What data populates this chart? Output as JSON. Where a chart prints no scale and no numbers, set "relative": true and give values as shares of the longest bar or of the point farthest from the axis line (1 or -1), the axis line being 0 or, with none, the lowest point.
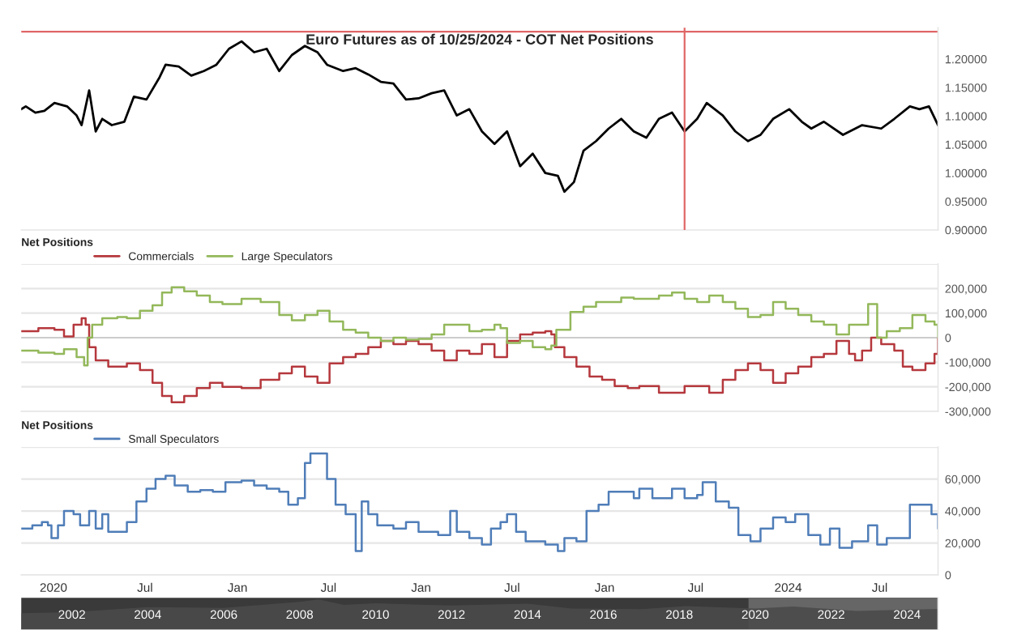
{
  "chart_data": [
    {
      "type": "line",
      "title": "Euro Futures as of 10/25/2024 - COT Net Positions",
      "tick_labels": "y",
      "grid": false,
      "xlim": [
        "2019-10-29",
        "2024-10-25"
      ],
      "ylim": [
        0.9,
        1.255
      ],
      "yticks": [
        {
          "value": 0.9,
          "label": "0.90000"
        },
        {
          "value": 0.95,
          "label": "0.95000"
        },
        {
          "value": 1.0,
          "label": "1.00000"
        },
        {
          "value": 1.05,
          "label": "1.05000"
        },
        {
          "value": 1.1,
          "label": "1.10000"
        },
        {
          "value": 1.15,
          "label": "1.15000"
        },
        {
          "value": 1.2,
          "label": "1.20000"
        }
      ],
      "ref_lines": [
        {
          "axis": "x",
          "value": "2023-06-09",
          "color": "#e06666"
        },
        {
          "axis": "y",
          "value": 1.248,
          "color": "#e06666"
        }
      ],
      "series": [
        {
          "color": "#000000",
          "x": [
            "2019-10-29",
            "2019-11-07",
            "2019-11-26",
            "2019-12-14",
            "2020-01-03",
            "2020-01-28",
            "2020-02-16",
            "2020-02-26",
            "2020-03-12",
            "2020-03-25",
            "2020-04-07",
            "2020-04-26",
            "2020-05-21",
            "2020-06-09",
            "2020-07-04",
            "2020-07-30",
            "2020-08-11",
            "2020-09-06",
            "2020-10-01",
            "2020-10-26",
            "2020-11-20",
            "2020-12-15",
            "2021-01-09",
            "2021-02-03",
            "2021-02-28",
            "2021-03-25",
            "2021-04-19",
            "2021-05-15",
            "2021-06-09",
            "2021-06-28",
            "2021-07-30",
            "2021-08-24",
            "2021-09-18",
            "2021-10-13",
            "2021-11-07",
            "2021-12-02",
            "2021-12-27",
            "2022-01-22",
            "2022-02-16",
            "2022-03-13",
            "2022-04-07",
            "2022-05-02",
            "2022-05-27",
            "2022-06-21",
            "2022-07-17",
            "2022-08-11",
            "2022-09-05",
            "2022-09-30",
            "2022-10-13",
            "2022-11-01",
            "2022-11-20",
            "2022-12-15",
            "2023-01-09",
            "2023-02-03",
            "2023-02-28",
            "2023-03-25",
            "2023-04-19",
            "2023-05-15",
            "2023-06-09",
            "2023-07-04",
            "2023-07-23",
            "2023-08-24",
            "2023-09-18",
            "2023-10-13",
            "2023-11-07",
            "2023-12-02",
            "2024-01-03",
            "2024-01-28",
            "2024-02-16",
            "2024-03-12",
            "2024-04-19",
            "2024-05-27",
            "2024-07-04",
            "2024-07-30",
            "2024-08-30",
            "2024-09-18",
            "2024-10-07",
            "2024-10-25"
          ],
          "values": [
            1.112,
            1.117,
            1.106,
            1.109,
            1.123,
            1.117,
            1.101,
            1.084,
            1.145,
            1.073,
            1.095,
            1.084,
            1.09,
            1.134,
            1.129,
            1.168,
            1.19,
            1.187,
            1.171,
            1.179,
            1.19,
            1.218,
            1.231,
            1.212,
            1.218,
            1.179,
            1.207,
            1.223,
            1.212,
            1.19,
            1.179,
            1.184,
            1.173,
            1.16,
            1.157,
            1.129,
            1.131,
            1.14,
            1.145,
            1.101,
            1.112,
            1.073,
            1.051,
            1.073,
            1.012,
            1.034,
            1.0,
            0.995,
            0.967,
            0.984,
            1.039,
            1.056,
            1.078,
            1.095,
            1.073,
            1.062,
            1.095,
            1.106,
            1.073,
            1.095,
            1.123,
            1.101,
            1.073,
            1.056,
            1.067,
            1.095,
            1.112,
            1.09,
            1.078,
            1.09,
            1.067,
            1.084,
            1.078,
            1.095,
            1.117,
            1.112,
            1.117,
            1.084
          ]
        }
      ]
    },
    {
      "type": "step",
      "title": "Net Positions",
      "tick_labels": "y",
      "grid": "y",
      "legend": "top left",
      "xlim": [
        "2019-10-29",
        "2024-10-25"
      ],
      "ylim": [
        -300000,
        300000
      ],
      "yticks": [
        {
          "value": -300000,
          "label": "-300,000"
        },
        {
          "value": -200000,
          "label": "-200,000"
        },
        {
          "value": -100000,
          "label": "-100,000"
        },
        {
          "value": 0,
          "label": "0"
        },
        {
          "value": 100000,
          "label": "100,000"
        },
        {
          "value": 200000,
          "label": "200,000"
        },
        {
          "value": 300000,
          "label": null
        }
      ],
      "ref_lines": [
        {
          "axis": "y",
          "value": 0,
          "color": "#cccccc"
        }
      ],
      "series": [
        {
          "name": "Commercials",
          "color": "#b5383d",
          "x": [
            "2019-10-29",
            "2019-12-02",
            "2020-01-03",
            "2020-01-22",
            "2020-02-10",
            "2020-02-26",
            "2020-03-05",
            "2020-03-12",
            "2020-03-25",
            "2020-04-19",
            "2020-05-26",
            "2020-06-21",
            "2020-07-16",
            "2020-08-04",
            "2020-08-23",
            "2020-09-17",
            "2020-10-12",
            "2020-11-07",
            "2020-12-02",
            "2021-01-09",
            "2021-02-16",
            "2021-03-25",
            "2021-04-19",
            "2021-05-15",
            "2021-06-09",
            "2021-07-03",
            "2021-07-30",
            "2021-08-24",
            "2021-09-18",
            "2021-10-13",
            "2021-11-07",
            "2021-12-02",
            "2021-12-27",
            "2022-01-22",
            "2022-02-16",
            "2022-03-13",
            "2022-04-07",
            "2022-05-02",
            "2022-05-27",
            "2022-06-21",
            "2022-07-17",
            "2022-08-11",
            "2022-09-05",
            "2022-09-17",
            "2022-09-24",
            "2022-10-13",
            "2022-11-06",
            "2022-12-02",
            "2022-12-27",
            "2023-01-21",
            "2023-02-16",
            "2023-03-11",
            "2023-04-19",
            "2023-05-15",
            "2023-06-09",
            "2023-07-04",
            "2023-07-28",
            "2023-08-24",
            "2023-09-18",
            "2023-10-13",
            "2023-11-07",
            "2023-12-02",
            "2023-12-27",
            "2024-01-21",
            "2024-02-16",
            "2024-03-12",
            "2024-04-06",
            "2024-05-01",
            "2024-05-13",
            "2024-05-27",
            "2024-06-14",
            "2024-07-04",
            "2024-07-30",
            "2024-08-16",
            "2024-09-04",
            "2024-09-30",
            "2024-10-18",
            "2024-10-25"
          ],
          "values": [
            26000,
            39000,
            32000,
            5000,
            53000,
            79000,
            53000,
            -39000,
            -92000,
            -118000,
            -105000,
            -132000,
            -184000,
            -237000,
            -263000,
            -237000,
            -205000,
            -184000,
            -200000,
            -205000,
            -171000,
            -145000,
            -118000,
            -158000,
            -184000,
            -105000,
            -79000,
            -66000,
            -39000,
            -13000,
            -26000,
            -13000,
            -26000,
            -53000,
            -92000,
            -53000,
            -66000,
            -26000,
            -79000,
            -13000,
            13000,
            21000,
            26000,
            13000,
            -39000,
            -79000,
            -118000,
            -158000,
            -171000,
            -197000,
            -205000,
            -197000,
            -224000,
            -224000,
            -197000,
            -197000,
            -224000,
            -171000,
            -132000,
            -105000,
            -132000,
            -184000,
            -145000,
            -118000,
            -79000,
            -66000,
            -13000,
            -66000,
            -92000,
            -53000,
            0,
            -26000,
            -53000,
            -118000,
            -132000,
            -105000,
            -66000,
            0
          ]
        },
        {
          "name": "Large Speculators",
          "color": "#93b85a",
          "x": [
            "2019-10-29",
            "2019-12-02",
            "2020-01-03",
            "2020-01-22",
            "2020-02-16",
            "2020-03-02",
            "2020-03-09",
            "2020-03-18",
            "2020-04-07",
            "2020-05-07",
            "2020-05-26",
            "2020-06-21",
            "2020-07-16",
            "2020-08-04",
            "2020-08-23",
            "2020-09-17",
            "2020-10-12",
            "2020-11-07",
            "2020-12-02",
            "2021-01-09",
            "2021-02-16",
            "2021-03-25",
            "2021-04-19",
            "2021-05-15",
            "2021-06-09",
            "2021-07-03",
            "2021-07-30",
            "2021-08-24",
            "2021-09-18",
            "2021-10-13",
            "2021-11-07",
            "2021-12-02",
            "2021-12-27",
            "2022-01-22",
            "2022-02-16",
            "2022-03-13",
            "2022-04-07",
            "2022-05-02",
            "2022-05-27",
            "2022-06-08",
            "2022-06-21",
            "2022-07-17",
            "2022-08-11",
            "2022-09-05",
            "2022-09-17",
            "2022-09-27",
            "2022-10-25",
            "2022-11-20",
            "2022-12-15",
            "2023-02-03",
            "2023-02-28",
            "2023-04-19",
            "2023-05-15",
            "2023-06-09",
            "2023-07-04",
            "2023-07-28",
            "2023-08-24",
            "2023-09-18",
            "2023-10-13",
            "2023-11-07",
            "2023-12-02",
            "2023-12-27",
            "2024-01-21",
            "2024-02-16",
            "2024-03-12",
            "2024-04-06",
            "2024-05-01",
            "2024-06-08",
            "2024-06-26",
            "2024-07-15",
            "2024-08-10",
            "2024-09-04",
            "2024-09-30",
            "2024-10-18",
            "2024-10-25"
          ],
          "values": [
            -53000,
            -61000,
            -66000,
            -47000,
            -79000,
            -113000,
            0,
            53000,
            79000,
            84000,
            79000,
            110000,
            132000,
            184000,
            205000,
            189000,
            171000,
            145000,
            137000,
            158000,
            145000,
            92000,
            71000,
            92000,
            110000,
            66000,
            32000,
            21000,
            0,
            -13000,
            0,
            -8000,
            -5000,
            13000,
            53000,
            53000,
            26000,
            32000,
            53000,
            39000,
            -21000,
            -13000,
            -39000,
            -47000,
            -32000,
            32000,
            105000,
            126000,
            145000,
            163000,
            158000,
            171000,
            184000,
            158000,
            145000,
            171000,
            145000,
            118000,
            84000,
            92000,
            145000,
            118000,
            92000,
            66000,
            53000,
            13000,
            53000,
            137000,
            0,
            26000,
            39000,
            92000,
            66000,
            53000,
            0
          ]
        }
      ]
    },
    {
      "type": "step",
      "title": "Net Positions",
      "tick_labels": "xy",
      "grid": "y",
      "legend": "top left",
      "xlim": [
        "2019-10-29",
        "2024-10-25"
      ],
      "ylim": [
        0,
        80000
      ],
      "xticks": [
        {
          "value": "2020-01-01",
          "label": "2020"
        },
        {
          "value": "2020-07-01",
          "label": "Jul"
        },
        {
          "value": "2021-01-01",
          "label": "Jan"
        },
        {
          "value": "2021-07-01",
          "label": "Jul"
        },
        {
          "value": "2022-01-01",
          "label": "Jan"
        },
        {
          "value": "2022-07-01",
          "label": "Jul"
        },
        {
          "value": "2023-01-01",
          "label": "Jan"
        },
        {
          "value": "2023-07-01",
          "label": "Jul"
        },
        {
          "value": "2024-01-01",
          "label": "2024"
        },
        {
          "value": "2024-07-01",
          "label": "Jul"
        }
      ],
      "yticks": [
        {
          "value": 0,
          "label": "0"
        },
        {
          "value": 20000,
          "label": "20,000"
        },
        {
          "value": 40000,
          "label": "40,000"
        },
        {
          "value": 60000,
          "label": "60,000"
        },
        {
          "value": 80000,
          "label": null
        }
      ],
      "series": [
        {
          "name": "Small Speculators",
          "color": "#4f7db8",
          "x": [
            "2019-10-29",
            "2019-11-20",
            "2019-12-09",
            "2019-12-21",
            "2019-12-28",
            "2020-01-10",
            "2020-01-22",
            "2020-02-10",
            "2020-02-23",
            "2020-03-12",
            "2020-03-25",
            "2020-04-07",
            "2020-04-19",
            "2020-05-07",
            "2020-05-26",
            "2020-06-14",
            "2020-07-04",
            "2020-07-22",
            "2020-08-11",
            "2020-08-29",
            "2020-09-24",
            "2020-10-19",
            "2020-11-13",
            "2020-12-08",
            "2021-01-09",
            "2021-02-03",
            "2021-02-28",
            "2021-03-25",
            "2021-04-12",
            "2021-05-01",
            "2021-05-15",
            "2021-05-26",
            "2021-06-14",
            "2021-06-28",
            "2021-07-15",
            "2021-08-04",
            "2021-08-24",
            "2021-09-05",
            "2021-09-18",
            "2021-10-06",
            "2021-11-07",
            "2021-12-02",
            "2021-12-27",
            "2022-02-04",
            "2022-02-28",
            "2022-03-13",
            "2022-04-07",
            "2022-05-02",
            "2022-05-20",
            "2022-06-08",
            "2022-06-21",
            "2022-07-09",
            "2022-07-28",
            "2022-09-05",
            "2022-09-30",
            "2022-10-13",
            "2022-11-06",
            "2022-11-26",
            "2022-12-20",
            "2023-01-09",
            "2023-02-03",
            "2023-02-28",
            "2023-03-11",
            "2023-04-06",
            "2023-05-15",
            "2023-06-09",
            "2023-07-04",
            "2023-07-15",
            "2023-08-10",
            "2023-09-05",
            "2023-09-24",
            "2023-10-18",
            "2023-11-07",
            "2023-12-02",
            "2023-12-27",
            "2024-01-15",
            "2024-02-10",
            "2024-03-05",
            "2024-03-24",
            "2024-04-12",
            "2024-05-07",
            "2024-06-08",
            "2024-06-26",
            "2024-07-15",
            "2024-08-10",
            "2024-08-30",
            "2024-09-23",
            "2024-10-12",
            "2024-10-25"
          ],
          "values": [
            29000,
            31000,
            33000,
            31000,
            23000,
            31000,
            40000,
            38000,
            31000,
            40000,
            29000,
            38000,
            27000,
            27000,
            33000,
            46000,
            54000,
            60000,
            62000,
            56000,
            52000,
            53000,
            52000,
            58000,
            59000,
            56000,
            54000,
            52000,
            44000,
            48000,
            70000,
            76000,
            76000,
            60000,
            44000,
            38000,
            15000,
            46000,
            38000,
            31000,
            29000,
            33000,
            27000,
            25000,
            40000,
            27000,
            23000,
            19000,
            29000,
            33000,
            38000,
            27000,
            21000,
            19000,
            15000,
            23000,
            21000,
            40000,
            44000,
            52000,
            52000,
            48000,
            54000,
            48000,
            54000,
            48000,
            50000,
            58000,
            46000,
            42000,
            25000,
            21000,
            29000,
            36000,
            33000,
            38000,
            25000,
            19000,
            29000,
            17000,
            21000,
            31000,
            19000,
            23000,
            23000,
            44000,
            44000,
            38000,
            29000
          ]
        }
      ]
    },
    {
      "type": "area",
      "relative": true,
      "tick_labels": "x",
      "grid": false,
      "xlim": [
        "2000-09-01",
        "2024-10-25"
      ],
      "xticks": [
        {
          "value": "2002-01-01",
          "label": "2002"
        },
        {
          "value": "2004-01-01",
          "label": "2004"
        },
        {
          "value": "2006-01-01",
          "label": "2006"
        },
        {
          "value": "2008-01-01",
          "label": "2008"
        },
        {
          "value": "2010-01-01",
          "label": "2010"
        },
        {
          "value": "2012-01-01",
          "label": "2012"
        },
        {
          "value": "2014-01-01",
          "label": "2014"
        },
        {
          "value": "2016-01-01",
          "label": "2016"
        },
        {
          "value": "2018-01-01",
          "label": "2018"
        },
        {
          "value": "2020-01-01",
          "label": "2020"
        },
        {
          "value": "2022-01-01",
          "label": "2022"
        },
        {
          "value": "2024-01-01",
          "label": "2024"
        }
      ],
      "bands": [
        {
          "axis": "x",
          "from": "2019-10-29",
          "to": "2024-10-25",
          "color": "#666666"
        }
      ],
      "series": [
        {
          "color": "#4a4a4a",
          "x": [
            "2000-09-01",
            "2002-01-01",
            "2004-01-01",
            "2006-01-01",
            "2008-01-01",
            "2008-07-01",
            "2009-03-01",
            "2010-01-01",
            "2012-01-01",
            "2014-01-01",
            "2015-03-01",
            "2017-01-01",
            "2018-03-01",
            "2020-01-01",
            "2021-01-01",
            "2022-09-01",
            "2024-10-25"
          ],
          "values": [
            0.55,
            0.58,
            0.75,
            0.72,
            0.92,
            1.0,
            0.82,
            0.87,
            0.8,
            0.86,
            0.7,
            0.68,
            0.78,
            0.7,
            0.77,
            0.62,
            0.69
          ]
        }
      ]
    }
  ]
}
